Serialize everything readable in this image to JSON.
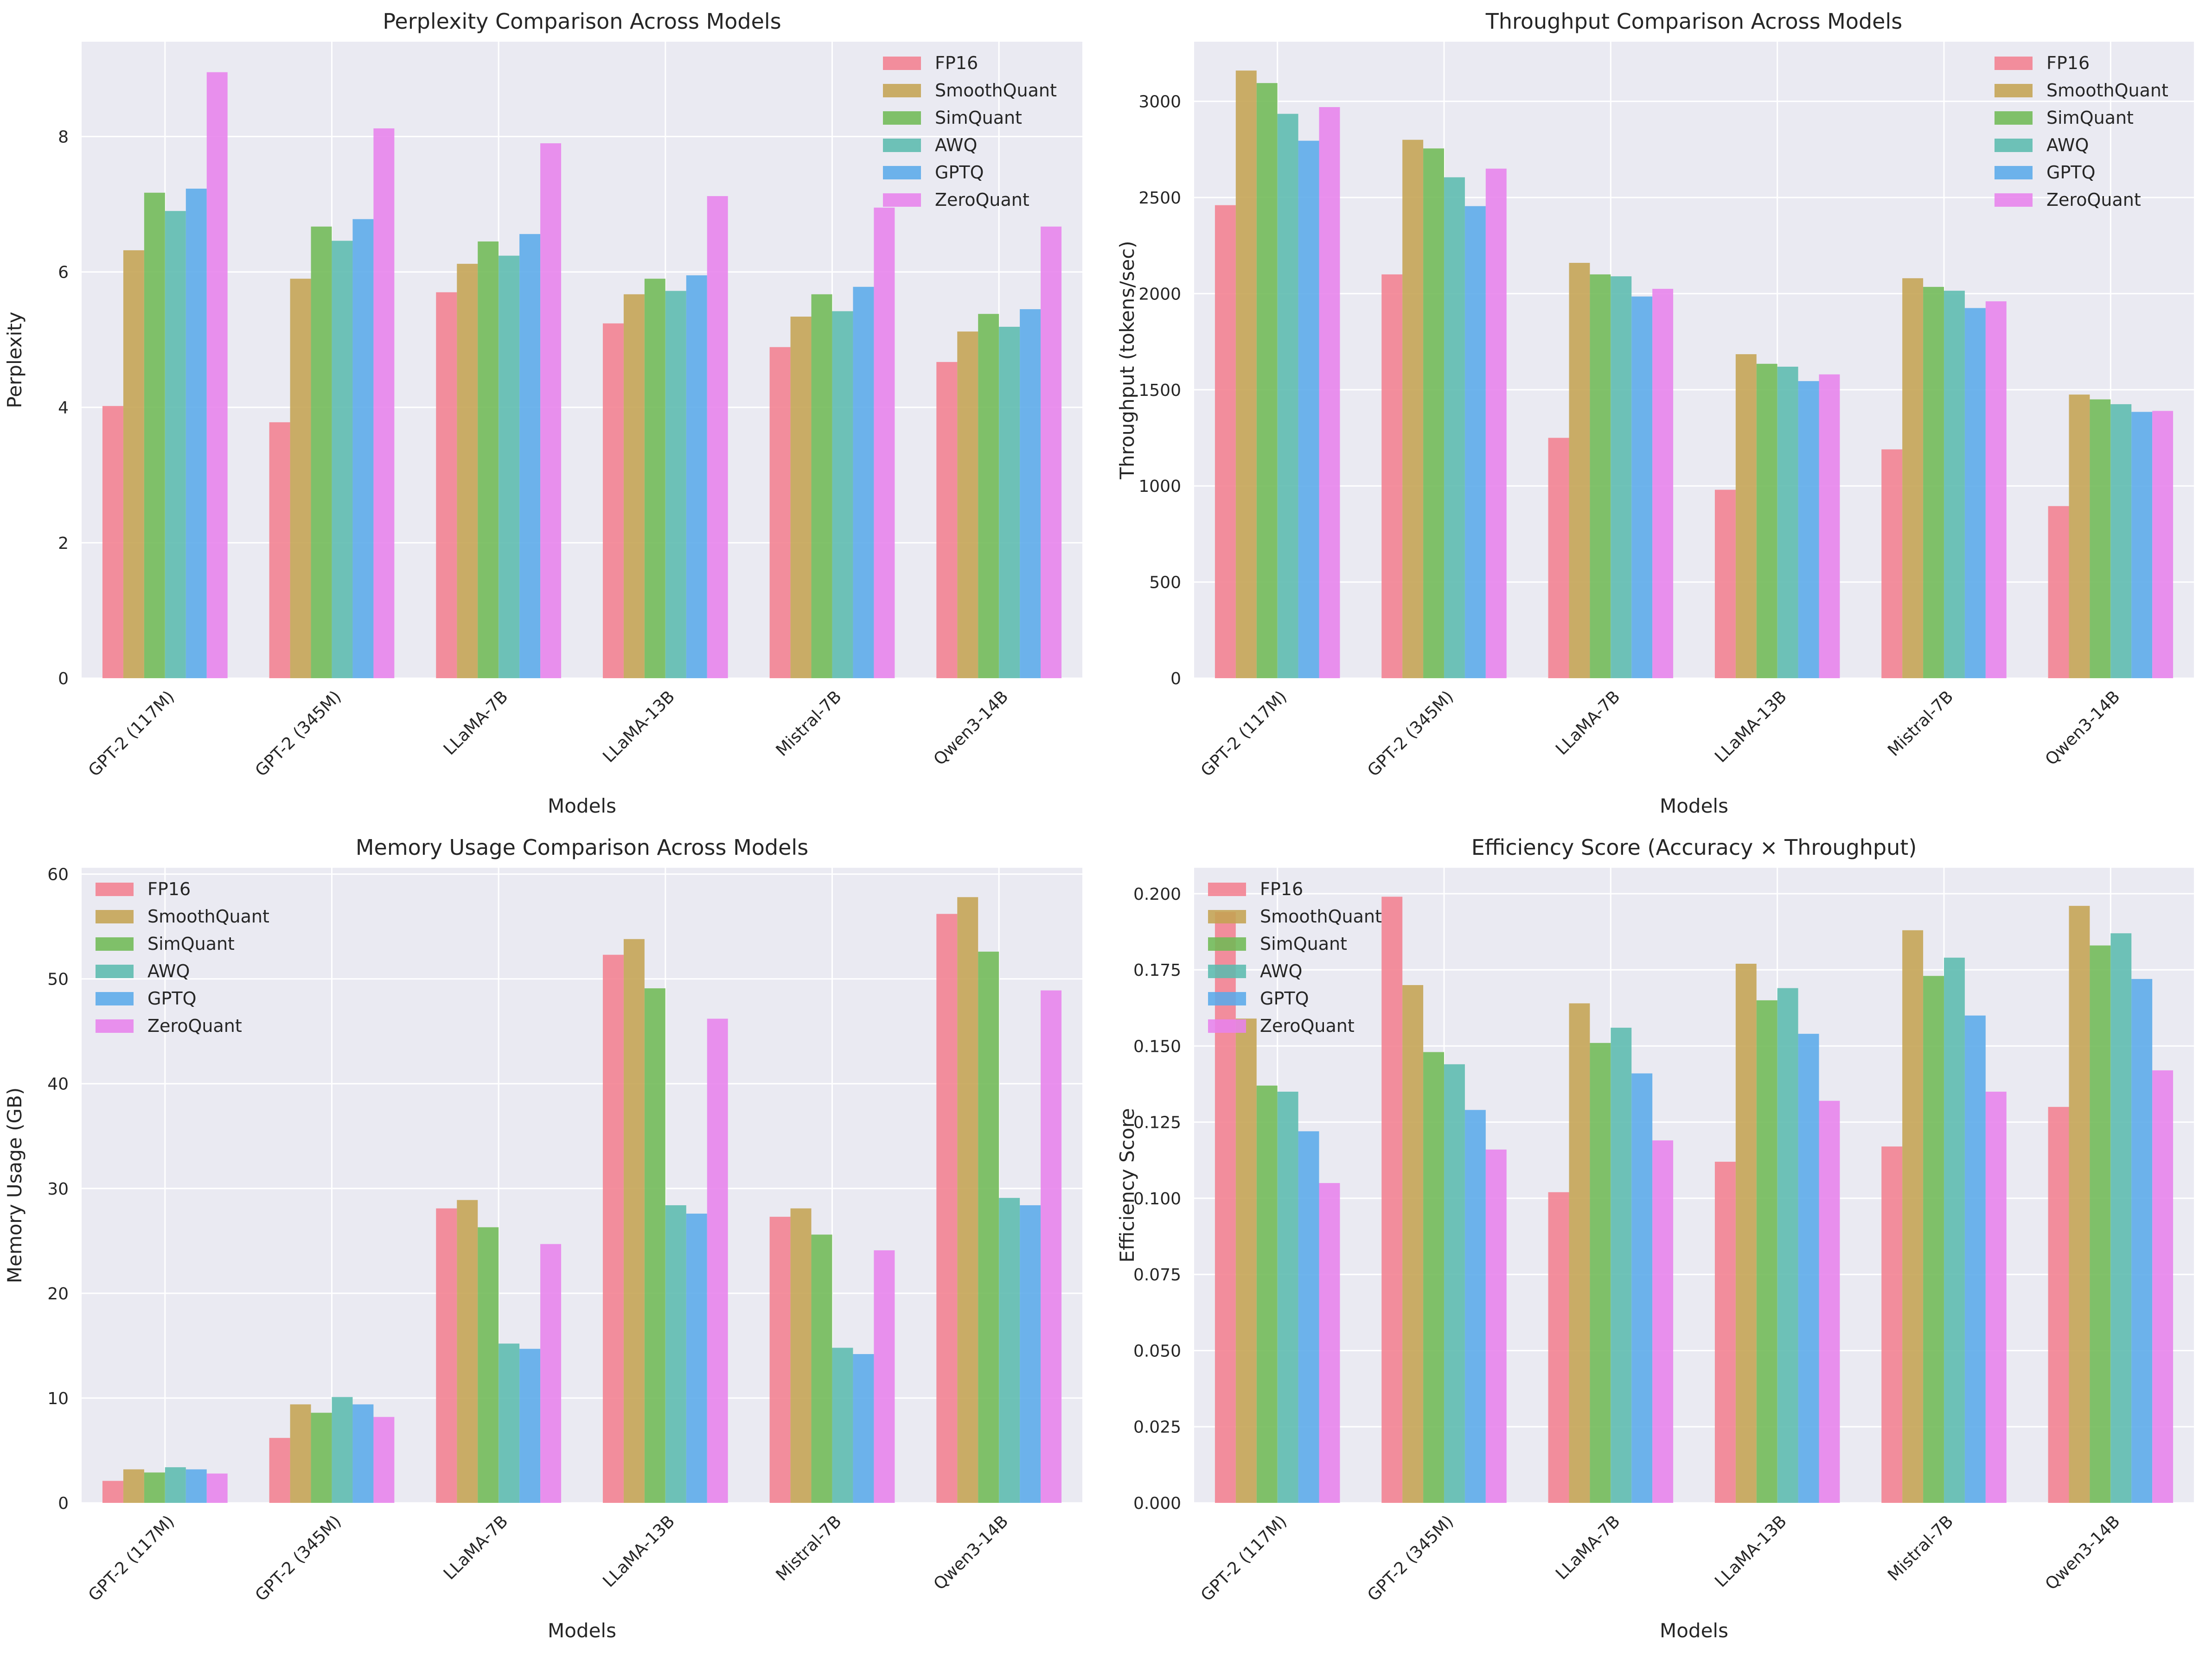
{
  "series_names": [
    "FP16",
    "SmoothQuant",
    "SimQuant",
    "AWQ",
    "GPTQ",
    "ZeroQuant"
  ],
  "colors": [
    "#f37f8f",
    "#c4a352",
    "#6fba55",
    "#5bbbae",
    "#5aaae9",
    "#e782ec"
  ],
  "chart_data": [
    {
      "type": "bar",
      "title": "Perplexity Comparison Across Models",
      "xlabel": "Models",
      "ylabel": "Perplexity",
      "categories": [
        "GPT-2 (117M)",
        "GPT-2 (345M)",
        "LLaMA-7B",
        "LLaMA-13B",
        "Mistral-7B",
        "Qwen3-14B"
      ],
      "ylim": [
        0,
        9.4
      ],
      "yticks": [
        0,
        2,
        4,
        6,
        8
      ],
      "ytick_labels": [
        "0",
        "2",
        "4",
        "6",
        "8"
      ],
      "legend_loc": "upper-right",
      "series": [
        {
          "name": "FP16",
          "values": [
            4.02,
            3.78,
            5.7,
            5.24,
            4.89,
            4.67
          ]
        },
        {
          "name": "SmoothQuant",
          "values": [
            6.32,
            5.9,
            6.12,
            5.67,
            5.34,
            5.12
          ]
        },
        {
          "name": "SimQuant",
          "values": [
            7.17,
            6.67,
            6.45,
            5.9,
            5.67,
            5.38
          ]
        },
        {
          "name": "AWQ",
          "values": [
            6.9,
            6.46,
            6.24,
            5.72,
            5.42,
            5.19
          ]
        },
        {
          "name": "GPTQ",
          "values": [
            7.23,
            6.78,
            6.56,
            5.95,
            5.78,
            5.45
          ]
        },
        {
          "name": "ZeroQuant",
          "values": [
            8.95,
            8.12,
            7.9,
            7.12,
            6.95,
            6.67
          ]
        }
      ]
    },
    {
      "type": "bar",
      "title": "Throughput Comparison Across Models",
      "xlabel": "Models",
      "ylabel": "Throughput (tokens/sec)",
      "categories": [
        "GPT-2 (117M)",
        "GPT-2 (345M)",
        "LLaMA-7B",
        "LLaMA-13B",
        "Mistral-7B",
        "Qwen3-14B"
      ],
      "ylim": [
        0,
        3310
      ],
      "yticks": [
        0,
        500,
        1000,
        1500,
        2000,
        2500,
        3000
      ],
      "ytick_labels": [
        "0",
        "500",
        "1000",
        "1500",
        "2000",
        "2500",
        "3000"
      ],
      "legend_loc": "upper-right",
      "series": [
        {
          "name": "FP16",
          "values": [
            2460,
            2100,
            1250,
            980,
            1190,
            895
          ]
        },
        {
          "name": "SmoothQuant",
          "values": [
            3160,
            2800,
            2160,
            1685,
            2080,
            1475
          ]
        },
        {
          "name": "SimQuant",
          "values": [
            3095,
            2755,
            2100,
            1635,
            2035,
            1450
          ]
        },
        {
          "name": "AWQ",
          "values": [
            2935,
            2605,
            2090,
            1620,
            2015,
            1425
          ]
        },
        {
          "name": "GPTQ",
          "values": [
            2795,
            2455,
            1985,
            1545,
            1925,
            1385
          ]
        },
        {
          "name": "ZeroQuant",
          "values": [
            2970,
            2650,
            2025,
            1580,
            1960,
            1390
          ]
        }
      ]
    },
    {
      "type": "bar",
      "title": "Memory Usage Comparison Across Models",
      "xlabel": "Models",
      "ylabel": "Memory Usage (GB)",
      "categories": [
        "GPT-2 (117M)",
        "GPT-2 (345M)",
        "LLaMA-7B",
        "LLaMA-13B",
        "Mistral-7B",
        "Qwen3-14B"
      ],
      "ylim": [
        0,
        60.6
      ],
      "yticks": [
        0,
        10,
        20,
        30,
        40,
        50,
        60
      ],
      "ytick_labels": [
        "0",
        "10",
        "20",
        "30",
        "40",
        "50",
        "60"
      ],
      "legend_loc": "upper-left",
      "series": [
        {
          "name": "FP16",
          "values": [
            2.1,
            6.2,
            28.1,
            52.3,
            27.3,
            56.2
          ]
        },
        {
          "name": "SmoothQuant",
          "values": [
            3.2,
            9.4,
            28.9,
            53.8,
            28.1,
            57.8
          ]
        },
        {
          "name": "SimQuant",
          "values": [
            2.9,
            8.6,
            26.3,
            49.1,
            25.6,
            52.6
          ]
        },
        {
          "name": "AWQ",
          "values": [
            3.4,
            10.1,
            15.2,
            28.4,
            14.8,
            29.1
          ]
        },
        {
          "name": "GPTQ",
          "values": [
            3.2,
            9.4,
            14.7,
            27.6,
            14.2,
            28.4
          ]
        },
        {
          "name": "ZeroQuant",
          "values": [
            2.8,
            8.2,
            24.7,
            46.2,
            24.1,
            48.9
          ]
        }
      ]
    },
    {
      "type": "bar",
      "title": "Efficiency Score (Accuracy × Throughput)",
      "xlabel": "Models",
      "ylabel": "Efficiency Score",
      "categories": [
        "GPT-2 (117M)",
        "GPT-2 (345M)",
        "LLaMA-7B",
        "LLaMA-13B",
        "Mistral-7B",
        "Qwen3-14B"
      ],
      "ylim": [
        0,
        0.2085
      ],
      "yticks": [
        0,
        0.025,
        0.05,
        0.075,
        0.1,
        0.125,
        0.15,
        0.175,
        0.2
      ],
      "ytick_labels": [
        "0.000",
        "0.025",
        "0.050",
        "0.075",
        "0.100",
        "0.125",
        "0.150",
        "0.175",
        "0.200"
      ],
      "legend_loc": "upper-left",
      "series": [
        {
          "name": "FP16",
          "values": [
            0.194,
            0.199,
            0.102,
            0.112,
            0.117,
            0.13
          ]
        },
        {
          "name": "SmoothQuant",
          "values": [
            0.159,
            0.17,
            0.164,
            0.177,
            0.188,
            0.196
          ]
        },
        {
          "name": "SimQuant",
          "values": [
            0.137,
            0.148,
            0.151,
            0.165,
            0.173,
            0.183
          ]
        },
        {
          "name": "AWQ",
          "values": [
            0.135,
            0.144,
            0.156,
            0.169,
            0.179,
            0.187
          ]
        },
        {
          "name": "GPTQ",
          "values": [
            0.122,
            0.129,
            0.141,
            0.154,
            0.16,
            0.172
          ]
        },
        {
          "name": "ZeroQuant",
          "values": [
            0.105,
            0.116,
            0.119,
            0.132,
            0.135,
            0.142
          ]
        }
      ]
    }
  ]
}
